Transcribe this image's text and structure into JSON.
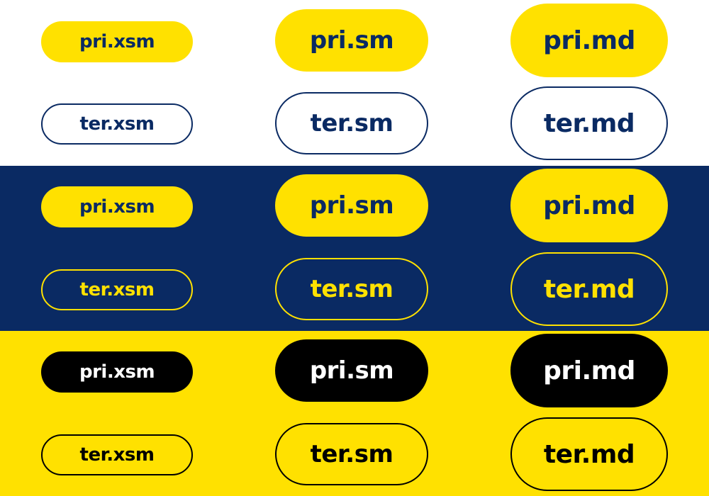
{
  "colors": {
    "navy": "#0a2a63",
    "yellow": "#ffe100",
    "white": "#ffffff",
    "black": "#000000"
  },
  "bands": {
    "white": {
      "pri": {
        "xsm": "pri.xsm",
        "sm": "pri.sm",
        "md": "pri.md"
      },
      "ter": {
        "xsm": "ter.xsm",
        "sm": "ter.sm",
        "md": "ter.md"
      }
    },
    "navy": {
      "pri": {
        "xsm": "pri.xsm",
        "sm": "pri.sm",
        "md": "pri.md"
      },
      "ter": {
        "xsm": "ter.xsm",
        "sm": "ter.sm",
        "md": "ter.md"
      }
    },
    "yellow": {
      "pri": {
        "xsm": "pri.xsm",
        "sm": "pri.sm",
        "md": "pri.md"
      },
      "ter": {
        "xsm": "ter.xsm",
        "sm": "ter.sm",
        "md": "ter.md"
      }
    }
  }
}
